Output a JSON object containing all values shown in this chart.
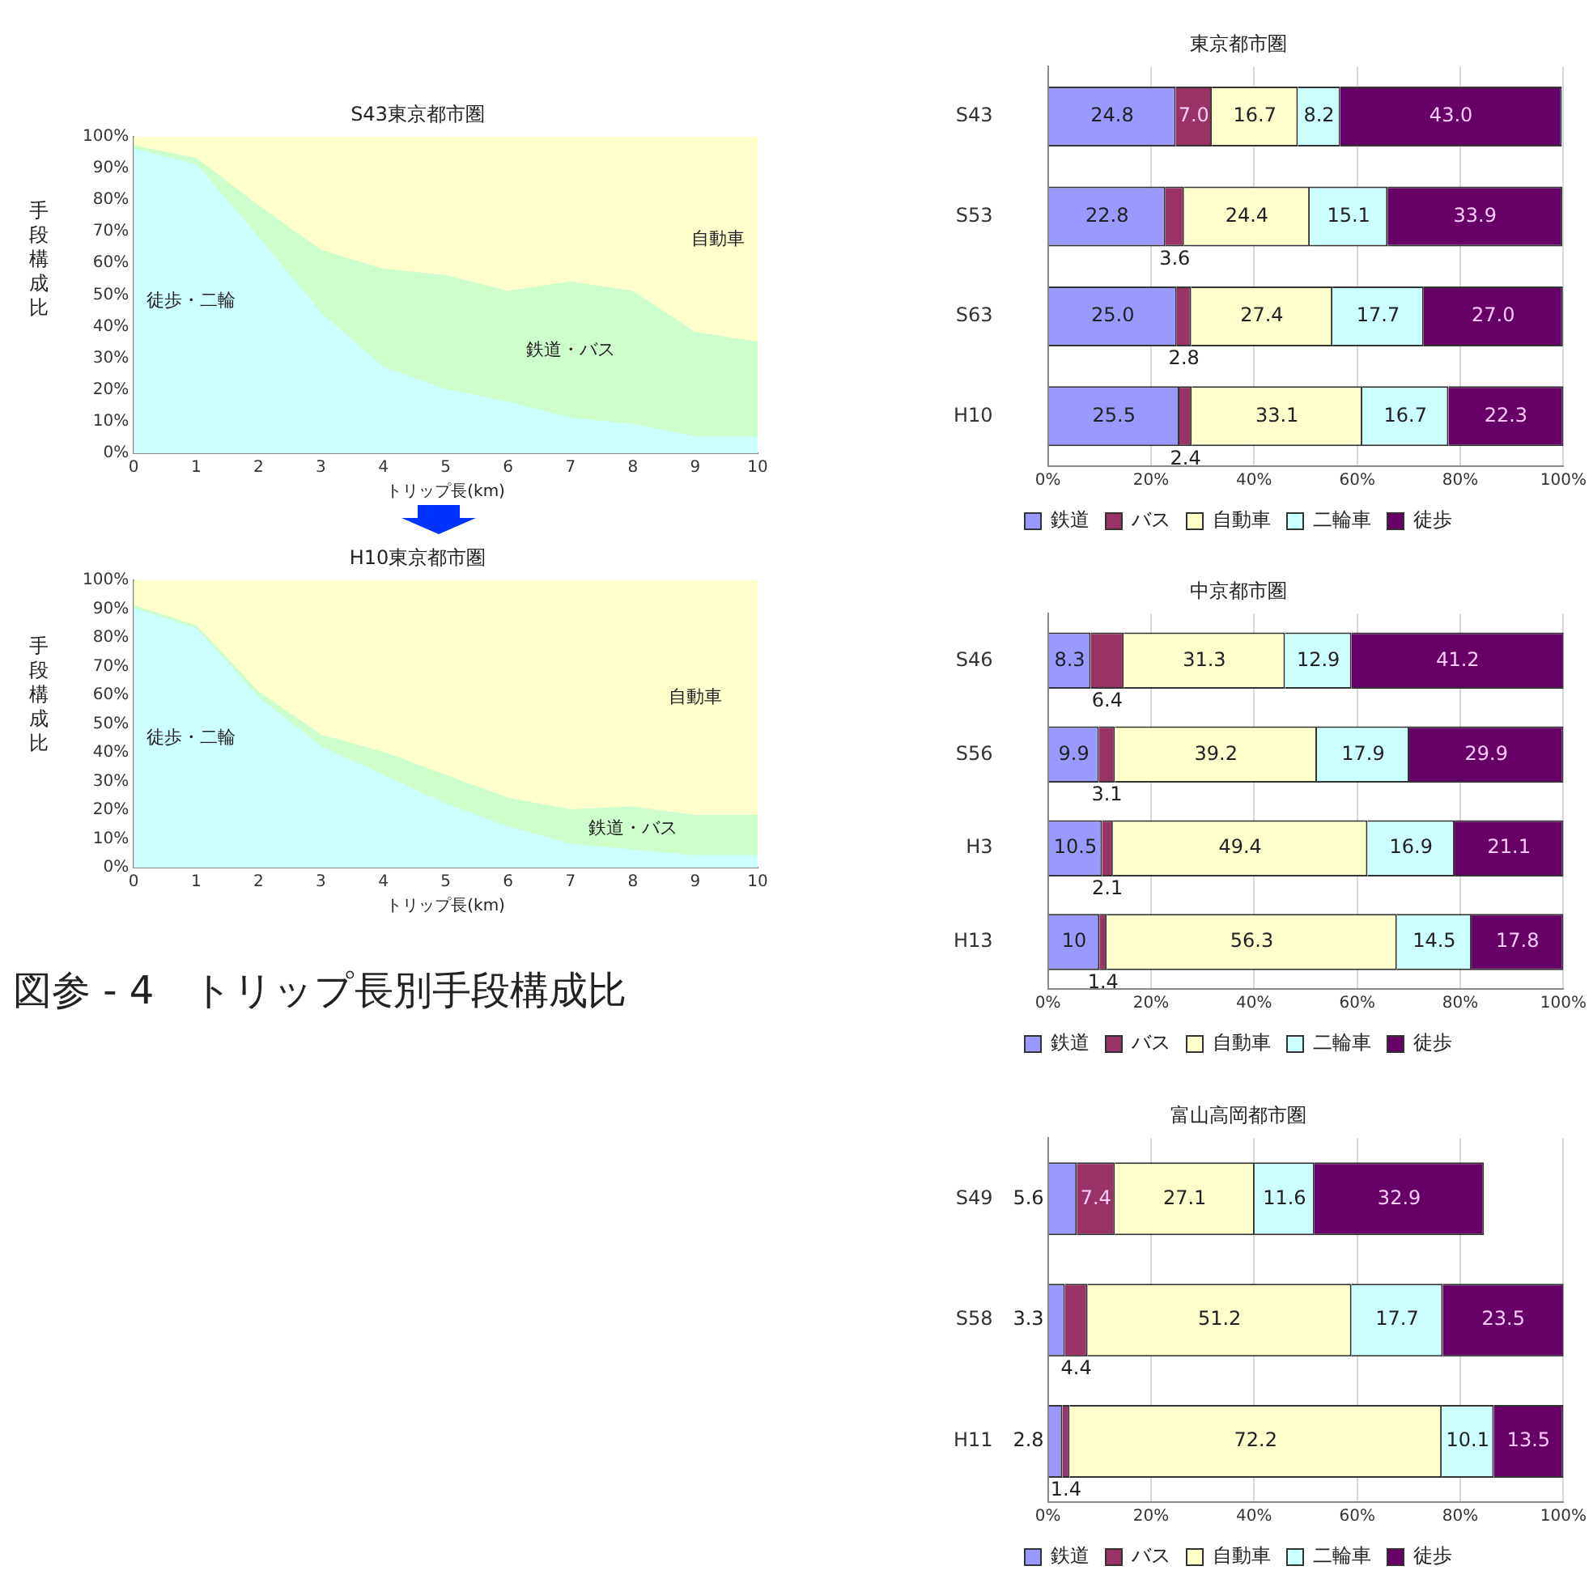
{
  "chart_data": [
    {
      "type": "area",
      "title": "S43東京都市圏",
      "xlabel": "トリップ長(km)",
      "ylabel": "手段構成比",
      "stacked": true,
      "x": [
        0,
        1,
        2,
        3,
        4,
        5,
        6,
        7,
        8,
        9,
        10
      ],
      "xlim": [
        0,
        10
      ],
      "xticks": [
        0,
        1,
        2,
        3,
        4,
        5,
        6,
        7,
        8,
        9,
        10
      ],
      "ylim": [
        0,
        100
      ],
      "yticks": [
        {
          "value": 0,
          "label": "0%"
        },
        {
          "value": 10,
          "label": "10%"
        },
        {
          "value": 20,
          "label": "20%"
        },
        {
          "value": 30,
          "label": "30%"
        },
        {
          "value": 40,
          "label": "40%"
        },
        {
          "value": 50,
          "label": "50%"
        },
        {
          "value": 60,
          "label": "60%"
        },
        {
          "value": 70,
          "label": "70%"
        },
        {
          "value": 80,
          "label": "80%"
        },
        {
          "value": 90,
          "label": "90%"
        },
        {
          "value": 100,
          "label": "100%"
        }
      ],
      "legend": false,
      "series": [
        {
          "name": "徒歩・二輪",
          "color": "#ccffff",
          "values": [
            96,
            91,
            68,
            44,
            27,
            20,
            16,
            11,
            9,
            5,
            5
          ]
        },
        {
          "name": "鉄道・バス",
          "color": "#ccffcc",
          "values": [
            1,
            2,
            10,
            20,
            31,
            36,
            35,
            43,
            42,
            33,
            30
          ]
        },
        {
          "name": "自動車",
          "color": "#ffffcc",
          "values": [
            3,
            7,
            22,
            36,
            42,
            44,
            49,
            46,
            49,
            62,
            65
          ]
        }
      ]
    },
    {
      "type": "area",
      "title": "H10東京都市圏",
      "xlabel": "トリップ長(km)",
      "ylabel": "手段構成比",
      "stacked": true,
      "x": [
        0,
        1,
        2,
        3,
        4,
        5,
        6,
        7,
        8,
        9,
        10
      ],
      "xlim": [
        0,
        10
      ],
      "xticks": [
        0,
        1,
        2,
        3,
        4,
        5,
        6,
        7,
        8,
        9,
        10
      ],
      "ylim": [
        0,
        100
      ],
      "yticks": [
        {
          "value": 0,
          "label": "0%"
        },
        {
          "value": 10,
          "label": "10%"
        },
        {
          "value": 20,
          "label": "20%"
        },
        {
          "value": 30,
          "label": "30%"
        },
        {
          "value": 40,
          "label": "40%"
        },
        {
          "value": 50,
          "label": "50%"
        },
        {
          "value": 60,
          "label": "60%"
        },
        {
          "value": 70,
          "label": "70%"
        },
        {
          "value": 80,
          "label": "80%"
        },
        {
          "value": 90,
          "label": "90%"
        },
        {
          "value": 100,
          "label": "100%"
        }
      ],
      "legend": false,
      "annotations": [
        "図参 - 4　トリップ長別手段構成比"
      ],
      "series": [
        {
          "name": "徒歩・二輪",
          "color": "#ccffff",
          "values": [
            90,
            83,
            59,
            42,
            32,
            22,
            14,
            8,
            6,
            4,
            4
          ]
        },
        {
          "name": "鉄道・バス",
          "color": "#ccffcc",
          "values": [
            1,
            1,
            2,
            4,
            8,
            10,
            10,
            12,
            15,
            14,
            14
          ]
        },
        {
          "name": "自動車",
          "color": "#ffffcc",
          "values": [
            9,
            16,
            39,
            54,
            60,
            68,
            76,
            80,
            79,
            82,
            82
          ]
        }
      ]
    },
    {
      "type": "bar",
      "title": "東京都市圏",
      "orientation": "horizontal",
      "stacked": true,
      "categories": [
        "S43",
        "S53",
        "S63",
        "H10"
      ],
      "xlim": [
        0,
        100
      ],
      "xticks": [
        {
          "value": 0,
          "label": "0%"
        },
        {
          "value": 20,
          "label": "20%"
        },
        {
          "value": 40,
          "label": "40%"
        },
        {
          "value": 60,
          "label": "60%"
        },
        {
          "value": 80,
          "label": "80%"
        },
        {
          "value": 100,
          "label": "100%"
        }
      ],
      "grid": "x",
      "legend": "bottom",
      "series": [
        {
          "name": "鉄道",
          "color": "#9999ff",
          "values": [
            24.8,
            22.8,
            25.0,
            25.5
          ],
          "value_labels": [
            "24.8",
            "22.8",
            "25.0",
            "25.5"
          ]
        },
        {
          "name": "バス",
          "color": "#993366",
          "values": [
            7.0,
            3.6,
            2.8,
            2.4
          ],
          "value_labels": [
            "7.0",
            "3.6",
            "2.8",
            "2.4"
          ]
        },
        {
          "name": "自動車",
          "color": "#ffffcc",
          "values": [
            16.7,
            24.4,
            27.4,
            33.1
          ],
          "value_labels": [
            "16.7",
            "24.4",
            "27.4",
            "33.1"
          ]
        },
        {
          "name": "二輪車",
          "color": "#ccffff",
          "values": [
            8.2,
            15.1,
            17.7,
            16.7
          ],
          "value_labels": [
            "8.2",
            "15.1",
            "17.7",
            "16.7"
          ]
        },
        {
          "name": "徒歩",
          "color": "#660066",
          "values": [
            43.0,
            33.9,
            27.0,
            22.3
          ],
          "value_labels": [
            "43.0",
            "33.9",
            "27.0",
            "22.3"
          ]
        }
      ]
    },
    {
      "type": "bar",
      "title": "中京都市圏",
      "orientation": "horizontal",
      "stacked": true,
      "categories": [
        "S46",
        "S56",
        "H3",
        "H13"
      ],
      "xlim": [
        0,
        100
      ],
      "xticks": [
        {
          "value": 0,
          "label": "0%"
        },
        {
          "value": 20,
          "label": "20%"
        },
        {
          "value": 40,
          "label": "40%"
        },
        {
          "value": 60,
          "label": "60%"
        },
        {
          "value": 80,
          "label": "80%"
        },
        {
          "value": 100,
          "label": "100%"
        }
      ],
      "grid": "x",
      "legend": "bottom",
      "series": [
        {
          "name": "鉄道",
          "color": "#9999ff",
          "values": [
            8.3,
            9.9,
            10.5,
            10
          ],
          "value_labels": [
            "8.3",
            "9.9",
            "10.5",
            "10"
          ]
        },
        {
          "name": "バス",
          "color": "#993366",
          "values": [
            6.4,
            3.1,
            2.1,
            1.4
          ],
          "value_labels": [
            "6.4",
            "3.1",
            "2.1",
            "1.4"
          ]
        },
        {
          "name": "自動車",
          "color": "#ffffcc",
          "values": [
            31.3,
            39.2,
            49.4,
            56.3
          ],
          "value_labels": [
            "31.3",
            "39.2",
            "49.4",
            "56.3"
          ]
        },
        {
          "name": "二輪車",
          "color": "#ccffff",
          "values": [
            12.9,
            17.9,
            16.9,
            14.5
          ],
          "value_labels": [
            "12.9",
            "17.9",
            "16.9",
            "14.5"
          ]
        },
        {
          "name": "徒歩",
          "color": "#660066",
          "values": [
            41.2,
            29.9,
            21.1,
            17.8
          ],
          "value_labels": [
            "41.2",
            "29.9",
            "21.1",
            "17.8"
          ]
        }
      ]
    },
    {
      "type": "bar",
      "title": "富山高岡都市圏",
      "orientation": "horizontal",
      "stacked": true,
      "categories": [
        "S49",
        "S58",
        "H11"
      ],
      "xlim": [
        0,
        100
      ],
      "xticks": [
        {
          "value": 0,
          "label": "0%"
        },
        {
          "value": 20,
          "label": "20%"
        },
        {
          "value": 40,
          "label": "40%"
        },
        {
          "value": 60,
          "label": "60%"
        },
        {
          "value": 80,
          "label": "80%"
        },
        {
          "value": 100,
          "label": "100%"
        }
      ],
      "grid": "x",
      "legend": "bottom",
      "series": [
        {
          "name": "鉄道",
          "color": "#9999ff",
          "values": [
            5.6,
            3.3,
            2.8
          ],
          "value_labels": [
            "5.6",
            "3.3",
            "2.8"
          ]
        },
        {
          "name": "バス",
          "color": "#993366",
          "values": [
            7.4,
            4.4,
            1.4
          ],
          "value_labels": [
            "7.4",
            "4.4",
            "1.4"
          ]
        },
        {
          "name": "自動車",
          "color": "#ffffcc",
          "values": [
            27.1,
            51.2,
            72.2
          ],
          "value_labels": [
            "27.1",
            "51.2",
            "72.2"
          ]
        },
        {
          "name": "二輪車",
          "color": "#ccffff",
          "values": [
            11.6,
            17.7,
            10.1
          ],
          "value_labels": [
            "11.6",
            "17.7",
            "10.1"
          ]
        },
        {
          "name": "徒歩",
          "color": "#660066",
          "values": [
            32.9,
            23.5,
            13.5
          ],
          "value_labels": [
            "32.9",
            "23.5",
            "13.5"
          ]
        }
      ]
    }
  ]
}
